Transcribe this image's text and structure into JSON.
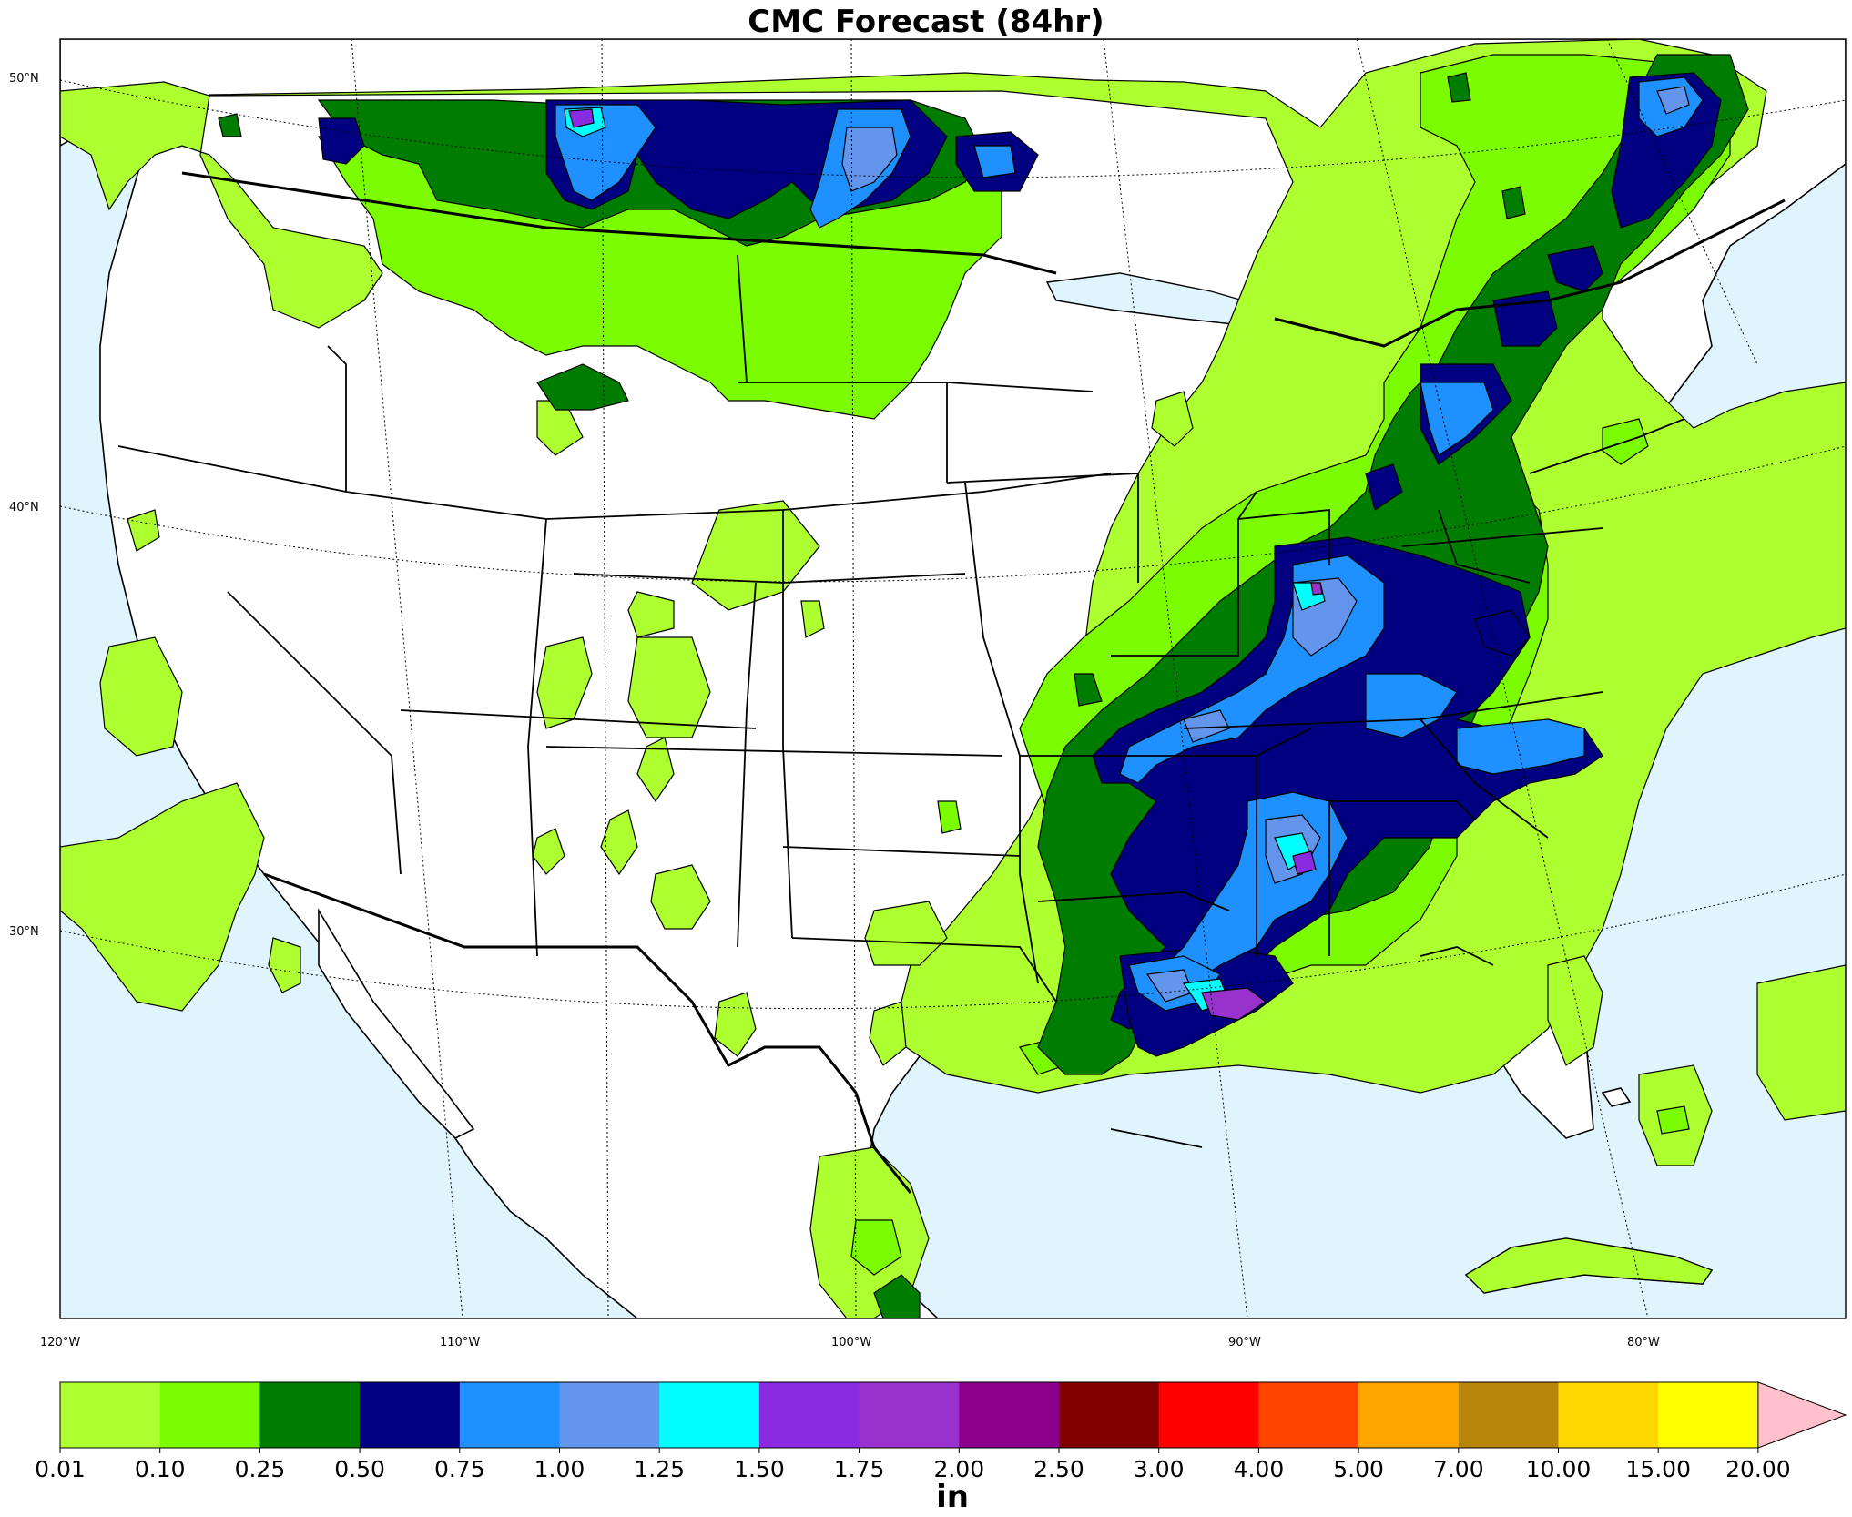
{
  "title": "CMC Forecast (84hr)",
  "lat_labels": [
    "50°N",
    "40°N",
    "30°N"
  ],
  "lon_labels": [
    "120°W",
    "110°W",
    "100°W",
    "90°W",
    "80°W"
  ],
  "colorbar": {
    "unit": "in",
    "ticks": [
      "0.01",
      "0.10",
      "0.25",
      "0.50",
      "0.75",
      "1.00",
      "1.25",
      "1.50",
      "1.75",
      "2.00",
      "2.50",
      "3.00",
      "4.00",
      "5.00",
      "7.00",
      "10.00",
      "15.00",
      "20.00"
    ],
    "colors": [
      "#adff2f",
      "#7cfc00",
      "#007d00",
      "#000080",
      "#1e90ff",
      "#6495ed",
      "#00ffff",
      "#8a2be2",
      "#9932cc",
      "#8b008b",
      "#800000",
      "#ff0000",
      "#ff4500",
      "#ffa500",
      "#b8860b",
      "#ffd700",
      "#ffff00"
    ],
    "extend_color": "#ffc0cb"
  },
  "colors": {
    "ocean": "#dff4fd",
    "land": "#ffffff"
  }
}
